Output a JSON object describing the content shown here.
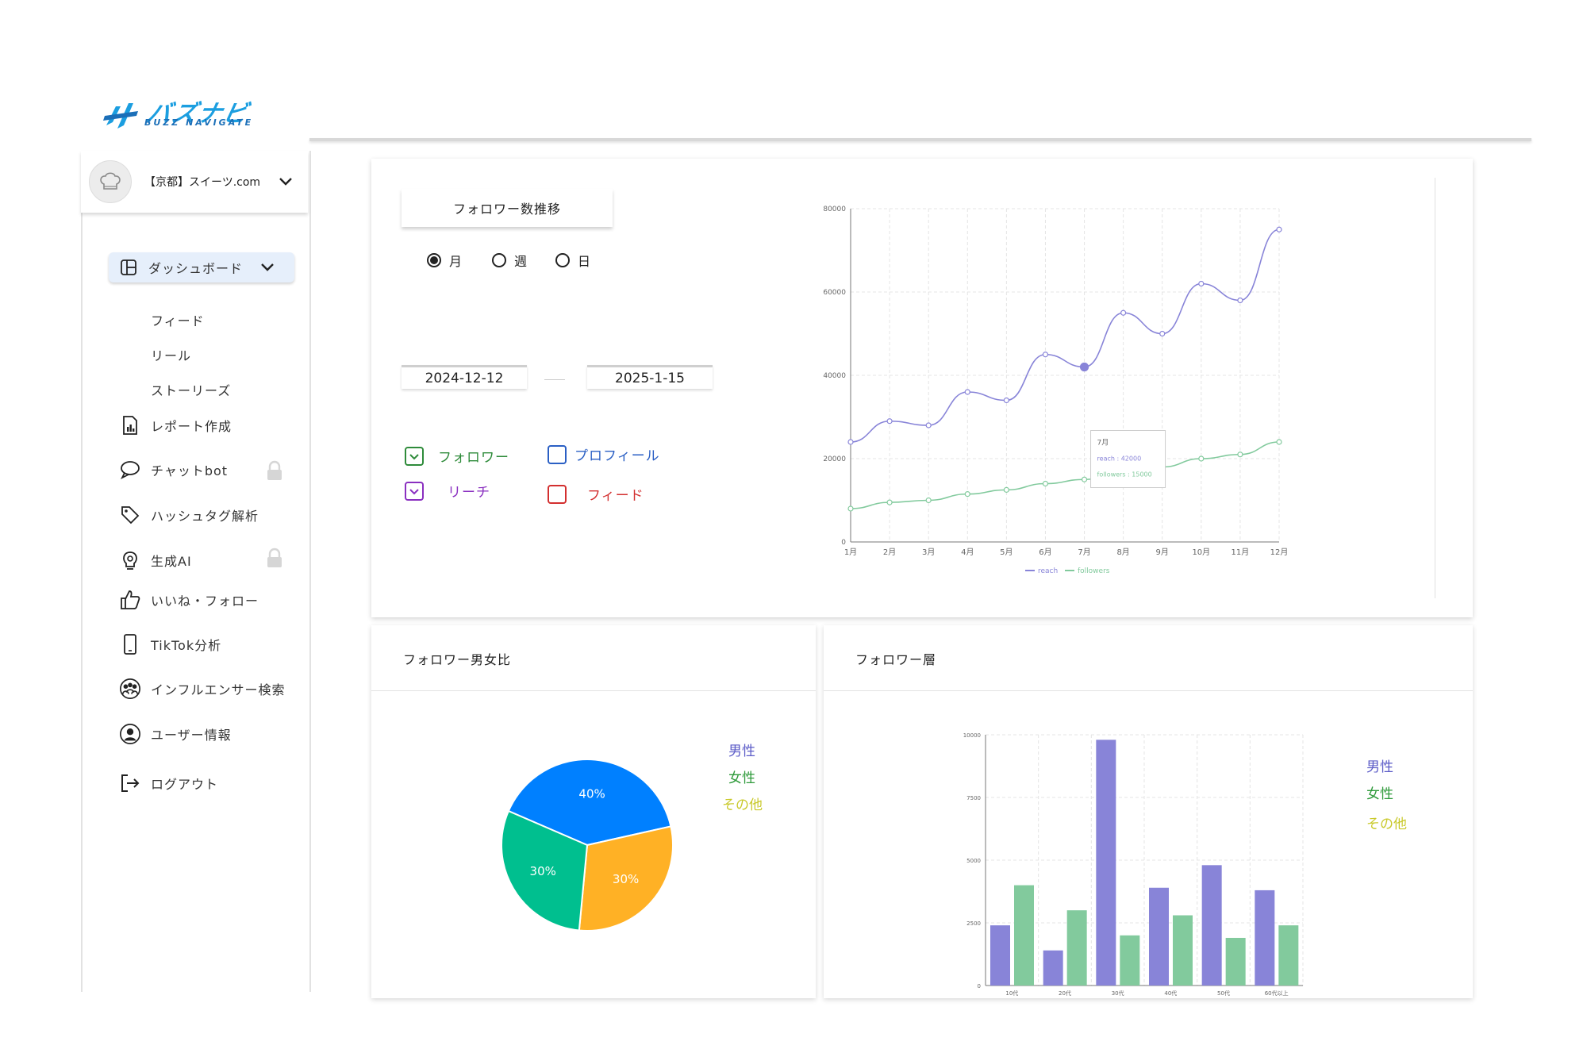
{
  "brand": {
    "logo_main": "バズナビ",
    "logo_sub": "BUZZ NAVIGATE"
  },
  "account": {
    "name": "【京都】スイーツ.com",
    "avatar_icon": "chef-hat-icon"
  },
  "sidebar": {
    "dashboard_label": "ダッシュボード",
    "subitems": [
      "フィード",
      "リール",
      "ストーリーズ"
    ],
    "items": [
      {
        "label": "レポート作成",
        "icon": "report-icon",
        "locked": false
      },
      {
        "label": "チャットbot",
        "icon": "chat-bubble-icon",
        "locked": true
      },
      {
        "label": "ハッシュタグ解析",
        "icon": "tag-icon",
        "locked": false
      },
      {
        "label": "生成AI",
        "icon": "lightbulb-gear-icon",
        "locked": true
      },
      {
        "label": "いいね・フォロー",
        "icon": "thumbs-up-icon",
        "locked": false
      },
      {
        "label": "TikTok分析",
        "icon": "phone-icon",
        "locked": false
      },
      {
        "label": "インフルエンサー検索",
        "icon": "group-icon",
        "locked": false
      },
      {
        "label": "ユーザー情報",
        "icon": "user-circle-icon",
        "locked": false
      }
    ],
    "logout_label": "ログアウト"
  },
  "follower_trend": {
    "tab_label": "フォロワー数推移",
    "period_options": [
      "月",
      "週",
      "日"
    ],
    "selected_period": "月",
    "date_from": "2024-12-12",
    "date_to": "2025-1-15",
    "metrics": [
      {
        "label": "フォロワー",
        "checked": true,
        "color": "#2e8b3a"
      },
      {
        "label": "プロフィール",
        "checked": false,
        "color": "#2a5fc4"
      },
      {
        "label": "リーチ",
        "checked": true,
        "color": "#8a2fc0"
      },
      {
        "label": "フィード",
        "checked": false,
        "color": "#d32f2f"
      }
    ]
  },
  "gender_panel": {
    "title": "フォロワー男女比",
    "legend": [
      {
        "label": "男性",
        "color": "#5b5bc7"
      },
      {
        "label": "女性",
        "color": "#2e9a3a"
      },
      {
        "label": "その他",
        "color": "#c9c92a"
      }
    ]
  },
  "age_panel": {
    "title": "フォロワー層",
    "legend": [
      {
        "label": "男性",
        "color": "#5b5bc7"
      },
      {
        "label": "女性",
        "color": "#2e9a3a"
      },
      {
        "label": "その他",
        "color": "#c9c92a"
      }
    ]
  },
  "chart_data": [
    {
      "type": "line",
      "x": [
        "1月",
        "2月",
        "3月",
        "4月",
        "5月",
        "6月",
        "7月",
        "8月",
        "9月",
        "10月",
        "11月",
        "12月"
      ],
      "series": [
        {
          "name": "reach",
          "color": "#8884d8",
          "values": [
            24000,
            29000,
            28000,
            36000,
            34000,
            45000,
            42000,
            55000,
            50000,
            62000,
            58000,
            75000
          ]
        },
        {
          "name": "followers",
          "color": "#82ca9d",
          "values": [
            8000,
            9500,
            10000,
            11500,
            12500,
            14000,
            15000,
            17000,
            18000,
            20000,
            21000,
            24000
          ]
        }
      ],
      "ylim": [
        0,
        80000
      ],
      "yticks": [
        0,
        20000,
        40000,
        60000,
        80000
      ],
      "grid": true,
      "legend": "bottom",
      "tooltip": {
        "title": "7月",
        "lines": [
          "reach : 42000",
          "followers : 15000"
        ]
      }
    },
    {
      "type": "pie",
      "slices": [
        {
          "label": "40%",
          "value": 40,
          "color": "#0080ff"
        },
        {
          "label": "30%",
          "value": 30,
          "color": "#ffb125"
        },
        {
          "label": "30%",
          "value": 30,
          "color": "#00bf8f"
        }
      ]
    },
    {
      "type": "bar",
      "categories": [
        "10代",
        "20代",
        "30代",
        "40代",
        "50代",
        "60代以上"
      ],
      "series": [
        {
          "color": "#8884d8",
          "values": [
            2400,
            1400,
            9800,
            3900,
            4800,
            3800
          ]
        },
        {
          "color": "#82ca9d",
          "values": [
            4000,
            3000,
            2000,
            2800,
            1900,
            2400
          ]
        }
      ],
      "ylim": [
        0,
        10000
      ],
      "yticks": [
        0,
        2500,
        5000,
        7500,
        10000
      ],
      "grid": true
    }
  ]
}
